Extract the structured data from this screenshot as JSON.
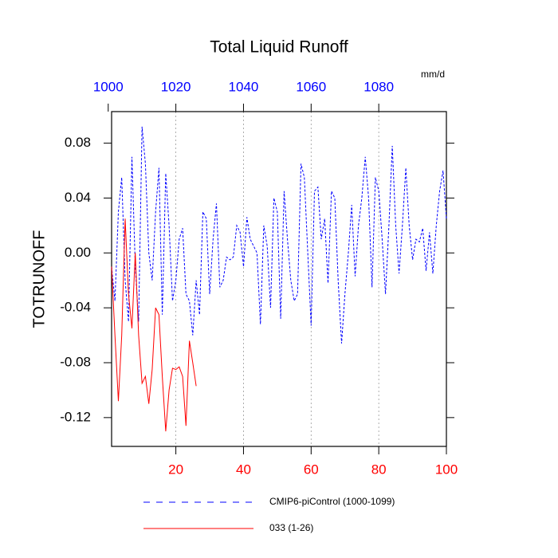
{
  "chart_data": {
    "type": "line",
    "title": "Total Liquid Runoff",
    "ylabel": "TOTRUNOFF",
    "units": "mm/d",
    "xlim": [
      1,
      100
    ],
    "xticks": [
      20,
      40,
      60,
      80,
      100
    ],
    "xtick_color": "#ff0000",
    "x2lim": [
      1001,
      1100
    ],
    "x2ticks": [
      1000,
      1020,
      1040,
      1060,
      1080
    ],
    "x2tick_color": "#0000ff",
    "ylim": [
      -0.141,
      0.103
    ],
    "yticks": [
      -0.12,
      -0.08,
      -0.04,
      {
        "value": 0,
        "label": "0.00"
      },
      0.04,
      0.08
    ],
    "grid": true,
    "series": [
      {
        "name": "CMIP6-piControl (1000-1099)",
        "color": "#0000ff",
        "dash": true,
        "x": [
          1,
          2,
          3,
          4,
          5,
          6,
          7,
          8,
          9,
          10,
          11,
          12,
          13,
          14,
          15,
          16,
          17,
          18,
          19,
          20,
          21,
          22,
          23,
          24,
          25,
          26,
          27,
          28,
          29,
          30,
          31,
          32,
          33,
          34,
          35,
          36,
          37,
          38,
          39,
          40,
          41,
          42,
          43,
          44,
          45,
          46,
          47,
          48,
          49,
          50,
          51,
          52,
          53,
          54,
          55,
          56,
          57,
          58,
          59,
          60,
          61,
          62,
          63,
          64,
          65,
          66,
          67,
          68,
          69,
          70,
          71,
          72,
          73,
          74,
          75,
          76,
          77,
          78,
          79,
          80,
          81,
          82,
          83,
          84,
          85,
          86,
          87,
          88,
          89,
          90,
          91,
          92,
          93,
          94,
          95,
          96,
          97,
          98,
          99,
          100
        ],
        "values": [
          -0.01,
          -0.035,
          0.03,
          0.055,
          -0.02,
          -0.05,
          0.07,
          -0.01,
          -0.05,
          0.092,
          0.065,
          0.0,
          -0.02,
          0.03,
          0.062,
          -0.045,
          0.058,
          0.02,
          -0.035,
          -0.02,
          0.01,
          0.018,
          -0.03,
          -0.035,
          -0.06,
          -0.02,
          -0.045,
          0.03,
          0.025,
          -0.03,
          0.01,
          0.036,
          -0.025,
          -0.02,
          -0.003,
          -0.005,
          -0.003,
          0.02,
          0.015,
          -0.01,
          0.026,
          0.01,
          0.005,
          0.0,
          -0.052,
          0.02,
          0.005,
          -0.04,
          0.04,
          0.03,
          -0.048,
          0.045,
          0.01,
          -0.02,
          -0.035,
          -0.03,
          0.065,
          0.055,
          0.0,
          -0.053,
          0.045,
          0.048,
          0.01,
          0.025,
          -0.022,
          0.045,
          0.04,
          -0.02,
          -0.066,
          -0.03,
          0.0,
          0.035,
          -0.017,
          0.02,
          0.04,
          0.07,
          0.04,
          -0.025,
          0.055,
          0.045,
          0.01,
          -0.03,
          0.02,
          0.078,
          0.02,
          -0.015,
          0.02,
          0.062,
          0.02,
          -0.005,
          0.01,
          0.008,
          0.018,
          -0.013,
          0.015,
          -0.015,
          0.02,
          0.045,
          0.06,
          0.025
        ]
      },
      {
        "name": "033 (1-26)",
        "color": "#ff0000",
        "dash": false,
        "x": [
          1,
          2,
          3,
          4,
          5,
          6,
          7,
          8,
          9,
          10,
          11,
          12,
          13,
          14,
          15,
          16,
          17,
          18,
          19,
          20,
          21,
          22,
          23,
          24,
          25,
          26
        ],
        "values": [
          -0.01,
          -0.06,
          -0.108,
          -0.06,
          0.025,
          -0.03,
          -0.055,
          0.0,
          -0.06,
          -0.095,
          -0.09,
          -0.11,
          -0.085,
          -0.04,
          -0.045,
          -0.09,
          -0.13,
          -0.1,
          -0.084,
          -0.085,
          -0.083,
          -0.09,
          -0.126,
          -0.064,
          -0.08,
          -0.097
        ]
      }
    ]
  }
}
